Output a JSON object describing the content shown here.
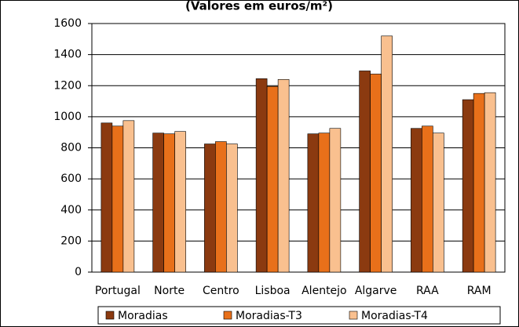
{
  "chart_data": {
    "type": "bar",
    "title": "(Valores em euros/m²)",
    "categories": [
      "Portugal",
      "Norte",
      "Centro",
      "Lisboa",
      "Alentejo",
      "Algarve",
      "RAA",
      "RAM"
    ],
    "series": [
      {
        "name": "Moradias",
        "color": "#8b3a10",
        "values": [
          960,
          895,
          825,
          1245,
          890,
          1295,
          925,
          1110
        ]
      },
      {
        "name": "Moradias-T3",
        "color": "#e8701a",
        "values": [
          940,
          890,
          840,
          1195,
          895,
          1275,
          940,
          1150
        ]
      },
      {
        "name": "Moradias-T4",
        "color": "#f9c08f",
        "values": [
          975,
          905,
          825,
          1240,
          925,
          1520,
          895,
          1155
        ]
      }
    ],
    "ylim": [
      0,
      1600
    ],
    "yticks": [
      0,
      200,
      400,
      600,
      800,
      1000,
      1200,
      1400,
      1600
    ],
    "grid": true,
    "legend": "bottom"
  }
}
